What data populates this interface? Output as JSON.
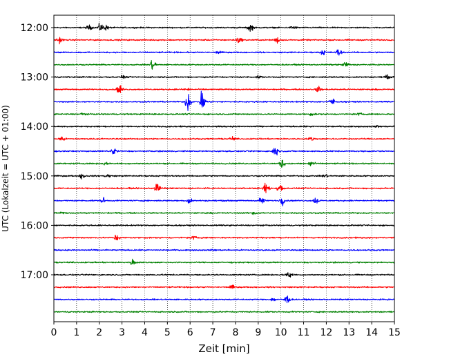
{
  "chart_data": {
    "type": "line",
    "xlabel": "Zeit  [min]",
    "ylabel": "UTC (Lokalzeit = UTC + 01:00)",
    "xlim": [
      0,
      15
    ],
    "x_ticks": [
      "0",
      "1",
      "2",
      "3",
      "4",
      "5",
      "6",
      "7",
      "8",
      "9",
      "10",
      "11",
      "12",
      "13",
      "14",
      "15"
    ],
    "y_ticks": [
      "12:00",
      "13:00",
      "14:00",
      "15:00",
      "16:00",
      "17:00"
    ],
    "trace_interval_min": 15,
    "trace_start": "12:00",
    "trace_count": 24,
    "grid": {
      "x": true,
      "y": false
    },
    "colors": [
      "#000000",
      "#ff0000",
      "#0000ff",
      "#008000"
    ],
    "traces": [
      {
        "start": "12:00",
        "color": "#000000",
        "events": [
          [
            1.5,
            0.4
          ],
          [
            2.0,
            0.7
          ],
          [
            2.25,
            0.4
          ],
          [
            8.6,
            0.7
          ],
          [
            10.5,
            0.3
          ]
        ]
      },
      {
        "start": "12:15",
        "color": "#ff0000",
        "events": [
          [
            0.2,
            0.5
          ],
          [
            8.1,
            0.5
          ],
          [
            9.8,
            0.5
          ]
        ]
      },
      {
        "start": "12:30",
        "color": "#0000ff",
        "events": [
          [
            7.2,
            0.2
          ],
          [
            11.8,
            0.4
          ],
          [
            12.5,
            0.6
          ]
        ]
      },
      {
        "start": "12:45",
        "color": "#008000",
        "events": [
          [
            4.3,
            1.0
          ],
          [
            12.8,
            0.5
          ]
        ]
      },
      {
        "start": "13:00",
        "color": "#000000",
        "events": [
          [
            3.0,
            0.2
          ],
          [
            9.0,
            0.2
          ],
          [
            14.6,
            0.3
          ]
        ]
      },
      {
        "start": "13:15",
        "color": "#ff0000",
        "events": [
          [
            2.85,
            0.8
          ],
          [
            5.8,
            0.2
          ],
          [
            11.6,
            0.5
          ]
        ]
      },
      {
        "start": "13:30",
        "color": "#0000ff",
        "events": [
          [
            5.85,
            1.5
          ],
          [
            6.5,
            2.1
          ],
          [
            12.2,
            0.6
          ]
        ]
      },
      {
        "start": "13:45",
        "color": "#008000",
        "events": [
          [
            1.2,
            0.2
          ],
          [
            11.3,
            0.2
          ],
          [
            13.4,
            0.2
          ]
        ]
      },
      {
        "start": "14:00",
        "color": "#000000",
        "events": [
          [
            14.2,
            0.1
          ]
        ]
      },
      {
        "start": "14:15",
        "color": "#ff0000",
        "events": [
          [
            0.3,
            0.5
          ],
          [
            7.8,
            0.3
          ],
          [
            11.3,
            0.3
          ]
        ]
      },
      {
        "start": "14:30",
        "color": "#0000ff",
        "events": [
          [
            2.6,
            0.7
          ],
          [
            9.7,
            0.8
          ]
        ]
      },
      {
        "start": "14:45",
        "color": "#008000",
        "events": [
          [
            2.2,
            0.2
          ],
          [
            10.0,
            0.7
          ],
          [
            11.3,
            0.6
          ]
        ]
      },
      {
        "start": "15:00",
        "color": "#000000",
        "events": [
          [
            1.2,
            0.5
          ],
          [
            2.3,
            0.3
          ],
          [
            11.9,
            0.3
          ]
        ]
      },
      {
        "start": "15:15",
        "color": "#ff0000",
        "events": [
          [
            4.5,
            0.9
          ],
          [
            9.3,
            1.0
          ],
          [
            9.9,
            0.9
          ]
        ]
      },
      {
        "start": "15:30",
        "color": "#0000ff",
        "events": [
          [
            2.1,
            0.5
          ],
          [
            5.9,
            0.6
          ],
          [
            9.1,
            0.6
          ],
          [
            10.0,
            0.7
          ],
          [
            11.5,
            0.6
          ]
        ]
      },
      {
        "start": "15:45",
        "color": "#008000",
        "events": [
          [
            0.3,
            0.1
          ],
          [
            8.8,
            0.3
          ]
        ]
      },
      {
        "start": "16:00",
        "color": "#000000",
        "events": []
      },
      {
        "start": "16:15",
        "color": "#ff0000",
        "events": [
          [
            2.7,
            0.6
          ],
          [
            6.1,
            0.3
          ]
        ]
      },
      {
        "start": "16:30",
        "color": "#0000ff",
        "events": [
          [
            7.0,
            0.1
          ]
        ]
      },
      {
        "start": "16:45",
        "color": "#008000",
        "events": [
          [
            3.45,
            0.6
          ]
        ]
      },
      {
        "start": "17:00",
        "color": "#000000",
        "events": [
          [
            10.3,
            0.6
          ]
        ]
      },
      {
        "start": "17:15",
        "color": "#ff0000",
        "events": [
          [
            7.8,
            0.3
          ]
        ]
      },
      {
        "start": "17:30",
        "color": "#0000ff",
        "events": [
          [
            9.6,
            0.3
          ],
          [
            10.2,
            0.8
          ]
        ]
      },
      {
        "start": "17:45",
        "color": "#008000",
        "events": []
      }
    ]
  }
}
